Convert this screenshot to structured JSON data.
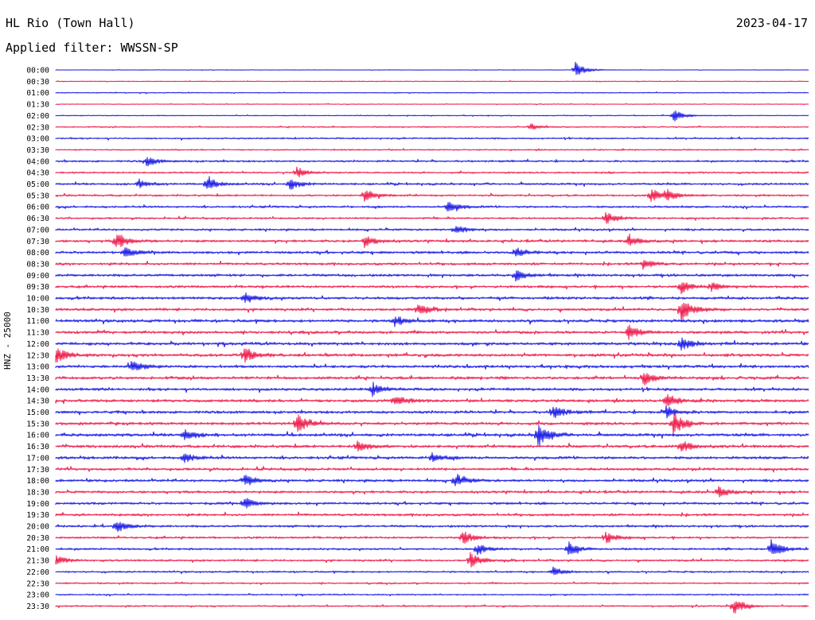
{
  "header": {
    "station": "HL Rio (Town Hall)",
    "date": "2023-04-17",
    "filter": "Applied filter: WWSSN-SP"
  },
  "y_axis_label": "HNZ - 25000",
  "colors": {
    "even_trace": "#1a1ae6",
    "odd_trace": "#ee1c4c",
    "text": "#000000"
  },
  "chart_data": {
    "type": "line",
    "title": "HL Rio (Town Hall)",
    "subtitle": "Applied filter: WWSSN-SP",
    "ylabel": "HNZ - 25000",
    "xlabel": "",
    "grid": false,
    "legend": "none",
    "rows": [
      "00:00",
      "00:30",
      "01:00",
      "01:30",
      "02:00",
      "02:30",
      "03:00",
      "03:30",
      "04:00",
      "04:30",
      "05:00",
      "05:30",
      "06:00",
      "06:30",
      "07:00",
      "07:30",
      "08:00",
      "08:30",
      "09:00",
      "09:30",
      "10:00",
      "10:30",
      "11:00",
      "11:30",
      "12:00",
      "12:30",
      "13:00",
      "13:30",
      "14:00",
      "14:30",
      "15:00",
      "15:30",
      "16:00",
      "16:30",
      "17:00",
      "17:30",
      "18:00",
      "18:30",
      "19:00",
      "19:30",
      "20:00",
      "20:30",
      "21:00",
      "21:30",
      "22:00",
      "22:30",
      "23:00",
      "23:30"
    ],
    "row_colors": [
      "blue",
      "red"
    ],
    "noise_level": [
      0.15,
      0.2,
      0.25,
      0.2,
      0.25,
      0.35,
      0.45,
      0.4,
      0.55,
      0.5,
      0.6,
      0.55,
      0.6,
      0.55,
      0.6,
      0.7,
      0.75,
      0.7,
      0.75,
      0.7,
      0.8,
      0.75,
      0.85,
      0.8,
      0.85,
      0.85,
      0.8,
      0.85,
      0.8,
      0.85,
      0.8,
      0.85,
      0.85,
      0.8,
      0.8,
      0.75,
      0.75,
      0.7,
      0.7,
      0.7,
      0.65,
      0.6,
      0.6,
      0.55,
      0.5,
      0.45,
      0.4,
      0.45
    ],
    "events": [
      {
        "row": 0,
        "t": 0.69,
        "amp": 10
      },
      {
        "row": 4,
        "t": 0.82,
        "amp": 8
      },
      {
        "row": 5,
        "t": 0.63,
        "amp": 4
      },
      {
        "row": 8,
        "t": 0.12,
        "amp": 7
      },
      {
        "row": 9,
        "t": 0.32,
        "amp": 7
      },
      {
        "row": 10,
        "t": 0.2,
        "amp": 9
      },
      {
        "row": 10,
        "t": 0.31,
        "amp": 8
      },
      {
        "row": 10,
        "t": 0.11,
        "amp": 6
      },
      {
        "row": 11,
        "t": 0.41,
        "amp": 9
      },
      {
        "row": 11,
        "t": 0.79,
        "amp": 9
      },
      {
        "row": 11,
        "t": 0.81,
        "amp": 7
      },
      {
        "row": 12,
        "t": 0.52,
        "amp": 9
      },
      {
        "row": 13,
        "t": 0.73,
        "amp": 8
      },
      {
        "row": 14,
        "t": 0.53,
        "amp": 7
      },
      {
        "row": 15,
        "t": 0.08,
        "amp": 12
      },
      {
        "row": 15,
        "t": 0.41,
        "amp": 8
      },
      {
        "row": 15,
        "t": 0.76,
        "amp": 7
      },
      {
        "row": 16,
        "t": 0.09,
        "amp": 7
      },
      {
        "row": 16,
        "t": 0.61,
        "amp": 7
      },
      {
        "row": 17,
        "t": 0.78,
        "amp": 7
      },
      {
        "row": 18,
        "t": 0.61,
        "amp": 7
      },
      {
        "row": 19,
        "t": 0.83,
        "amp": 9
      },
      {
        "row": 19,
        "t": 0.87,
        "amp": 6
      },
      {
        "row": 20,
        "t": 0.25,
        "amp": 7
      },
      {
        "row": 21,
        "t": 0.48,
        "amp": 8
      },
      {
        "row": 21,
        "t": 0.83,
        "amp": 16
      },
      {
        "row": 22,
        "t": 0.45,
        "amp": 7
      },
      {
        "row": 23,
        "t": 0.76,
        "amp": 10
      },
      {
        "row": 24,
        "t": 0.83,
        "amp": 9
      },
      {
        "row": 25,
        "t": 0.0,
        "amp": 11
      },
      {
        "row": 25,
        "t": 0.25,
        "amp": 10
      },
      {
        "row": 26,
        "t": 0.1,
        "amp": 8
      },
      {
        "row": 27,
        "t": 0.78,
        "amp": 9
      },
      {
        "row": 28,
        "t": 0.42,
        "amp": 8
      },
      {
        "row": 29,
        "t": 0.45,
        "amp": 8
      },
      {
        "row": 29,
        "t": 0.81,
        "amp": 9
      },
      {
        "row": 30,
        "t": 0.66,
        "amp": 9
      },
      {
        "row": 30,
        "t": 0.81,
        "amp": 8
      },
      {
        "row": 31,
        "t": 0.32,
        "amp": 14
      },
      {
        "row": 31,
        "t": 0.82,
        "amp": 14
      },
      {
        "row": 32,
        "t": 0.64,
        "amp": 16
      },
      {
        "row": 32,
        "t": 0.17,
        "amp": 7
      },
      {
        "row": 33,
        "t": 0.4,
        "amp": 8
      },
      {
        "row": 33,
        "t": 0.83,
        "amp": 8
      },
      {
        "row": 34,
        "t": 0.17,
        "amp": 7
      },
      {
        "row": 34,
        "t": 0.5,
        "amp": 6
      },
      {
        "row": 36,
        "t": 0.25,
        "amp": 8
      },
      {
        "row": 36,
        "t": 0.53,
        "amp": 9
      },
      {
        "row": 37,
        "t": 0.88,
        "amp": 7
      },
      {
        "row": 38,
        "t": 0.25,
        "amp": 8
      },
      {
        "row": 40,
        "t": 0.08,
        "amp": 9
      },
      {
        "row": 41,
        "t": 0.54,
        "amp": 9
      },
      {
        "row": 41,
        "t": 0.73,
        "amp": 7
      },
      {
        "row": 42,
        "t": 0.56,
        "amp": 8
      },
      {
        "row": 42,
        "t": 0.68,
        "amp": 9
      },
      {
        "row": 42,
        "t": 0.95,
        "amp": 13
      },
      {
        "row": 43,
        "t": 0.55,
        "amp": 10
      },
      {
        "row": 43,
        "t": 0.0,
        "amp": 6
      },
      {
        "row": 44,
        "t": 0.66,
        "amp": 6
      },
      {
        "row": 47,
        "t": 0.9,
        "amp": 11
      }
    ]
  }
}
